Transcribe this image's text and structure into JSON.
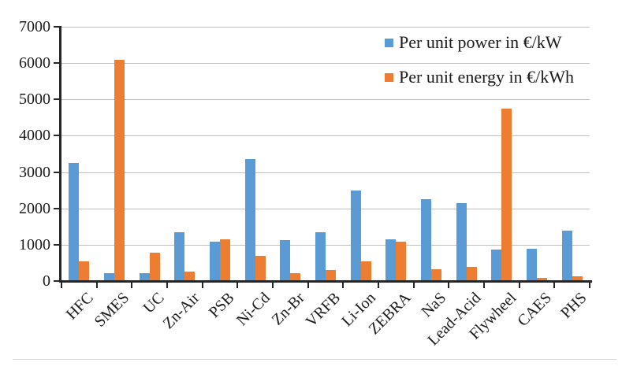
{
  "chart_data": {
    "type": "bar",
    "title": "",
    "xlabel": "",
    "ylabel": "",
    "ylim": [
      0,
      7000
    ],
    "ytick_step": 1000,
    "yticks": [
      0,
      1000,
      2000,
      3000,
      4000,
      5000,
      6000,
      7000
    ],
    "grid": true,
    "legend_position": "top-right-inside",
    "categories": [
      "HFC",
      "SMES",
      "UC",
      "Zn-Air",
      "PSB",
      "Ni-Cd",
      "Zn-Br",
      "VRFB",
      "Li-Ion",
      "ZEBRA",
      "NaS",
      "Lead-Acid",
      "Flywheel",
      "CAES",
      "PHS"
    ],
    "series": [
      {
        "name": "Per unit power in €/kW",
        "color": "#5B9BD5",
        "values": [
          3250,
          220,
          220,
          1350,
          1080,
          3350,
          1120,
          1350,
          2500,
          1150,
          2250,
          2150,
          870,
          890,
          1390
        ]
      },
      {
        "name": "Per unit energy in €/kWh",
        "color": "#ED7D31",
        "values": [
          550,
          6100,
          770,
          270,
          1150,
          690,
          220,
          300,
          550,
          1090,
          330,
          400,
          4750,
          80,
          130
        ]
      }
    ],
    "colors": {
      "axis": "#262626",
      "gridline": "#bfbfbf",
      "text": "#1a1a1a",
      "background": "#ffffff"
    }
  }
}
